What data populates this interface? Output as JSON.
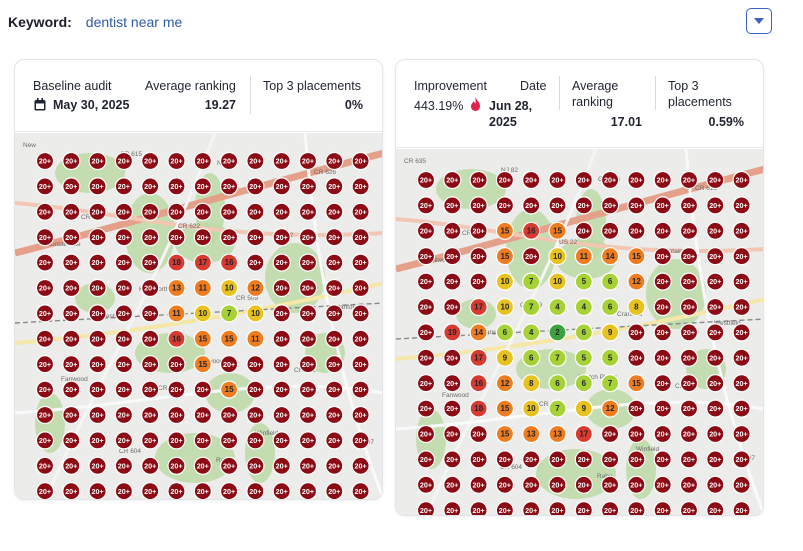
{
  "keyword": {
    "label": "Keyword:",
    "value": "dentist near me"
  },
  "dropdown": {
    "icon": "chevron-down-icon",
    "color": "#3a63c2"
  },
  "baseline": {
    "title": "Baseline audit",
    "date": "May 30, 2025",
    "date_icon": "calendar-icon",
    "avg_label": "Average ranking",
    "avg_value": "19.27",
    "top3_label": "Top 3 placements",
    "top3_value": "0%",
    "grid": [
      [
        "20+",
        "20+",
        "20+",
        "20+",
        "20+",
        "20+",
        "20+",
        "20+",
        "20+",
        "20+",
        "20+",
        "20+",
        "20+"
      ],
      [
        "20+",
        "20+",
        "20+",
        "20+",
        "20+",
        "20+",
        "20+",
        "20+",
        "20+",
        "20+",
        "20+",
        "20+",
        "20+"
      ],
      [
        "20+",
        "20+",
        "20+",
        "20+",
        "20+",
        "20+",
        "20+",
        "20+",
        "20+",
        "20+",
        "20+",
        "20+",
        "20+"
      ],
      [
        "20+",
        "20+",
        "20+",
        "20+",
        "20+",
        "20+",
        "20+",
        "20+",
        "20+",
        "20+",
        "20+",
        "20+",
        "20+"
      ],
      [
        "20+",
        "20+",
        "20+",
        "20+",
        "20+",
        "18",
        "17",
        "16",
        "20+",
        "20+",
        "20+",
        "20+",
        "20+"
      ],
      [
        "20+",
        "20+",
        "20+",
        "20+",
        "20+",
        "13",
        "11",
        "10",
        "12",
        "20+",
        "20+",
        "20+",
        "20+"
      ],
      [
        "20+",
        "20+",
        "20+",
        "20+",
        "20+",
        "11",
        "10",
        "7",
        "10",
        "20+",
        "20+",
        "20+",
        "20+"
      ],
      [
        "20+",
        "20+",
        "20+",
        "20+",
        "20+",
        "16",
        "15",
        "15",
        "11",
        "20+",
        "20+",
        "20+",
        "20+"
      ],
      [
        "20+",
        "20+",
        "20+",
        "20+",
        "20+",
        "20+",
        "15",
        "20+",
        "20+",
        "20+",
        "20+",
        "20+",
        "20+"
      ],
      [
        "20+",
        "20+",
        "20+",
        "20+",
        "20+",
        "20+",
        "20+",
        "15",
        "20+",
        "20+",
        "20+",
        "20+",
        "20+"
      ],
      [
        "20+",
        "20+",
        "20+",
        "20+",
        "20+",
        "20+",
        "20+",
        "20+",
        "20+",
        "20+",
        "20+",
        "20+",
        "20+"
      ],
      [
        "20+",
        "20+",
        "20+",
        "20+",
        "20+",
        "20+",
        "20+",
        "20+",
        "20+",
        "20+",
        "20+",
        "20+",
        "20+"
      ],
      [
        "20+",
        "20+",
        "20+",
        "20+",
        "20+",
        "20+",
        "20+",
        "20+",
        "20+",
        "20+",
        "20+",
        "20+",
        "20+"
      ],
      [
        "20+",
        "20+",
        "20+",
        "20+",
        "20+",
        "20+",
        "20+",
        "20+",
        "20+",
        "20+",
        "20+",
        "20+",
        "20+"
      ]
    ]
  },
  "current": {
    "improvement_label": "Improvement",
    "improvement_value": "443.19%",
    "improvement_icon": "flame-icon",
    "date_label": "Date",
    "date_value_line1": "Jun 28,",
    "date_value_line2": "2025",
    "avg_label_line1": "Average",
    "avg_label_line2": "ranking",
    "avg_value": "17.01",
    "top3_label_line1": "Top 3",
    "top3_label_line2": "placements",
    "top3_value": "0.59%",
    "grid": [
      [
        "20+",
        "20+",
        "20+",
        "20+",
        "20+",
        "20+",
        "20+",
        "20+",
        "20+",
        "20+",
        "20+",
        "20+",
        "20+"
      ],
      [
        "20+",
        "20+",
        "20+",
        "20+",
        "20+",
        "20+",
        "20+",
        "20+",
        "20+",
        "20+",
        "20+",
        "20+",
        "20+"
      ],
      [
        "20+",
        "20+",
        "20+",
        "15",
        "16",
        "15",
        "20+",
        "20+",
        "20+",
        "20+",
        "20+",
        "20+",
        "20+"
      ],
      [
        "20+",
        "20+",
        "20+",
        "15",
        "20+",
        "10",
        "11",
        "14",
        "15",
        "20+",
        "20+",
        "20+",
        "20+"
      ],
      [
        "20+",
        "20+",
        "20+",
        "10",
        "7",
        "10",
        "5",
        "6",
        "12",
        "20+",
        "20+",
        "20+",
        "20+"
      ],
      [
        "20+",
        "20+",
        "17",
        "10",
        "7",
        "4",
        "4",
        "6",
        "8",
        "20+",
        "20+",
        "20+",
        "20+"
      ],
      [
        "20+",
        "19",
        "14",
        "6",
        "4",
        "2",
        "6",
        "9",
        "20+",
        "20+",
        "20+",
        "20+",
        "20+"
      ],
      [
        "20+",
        "20+",
        "17",
        "9",
        "6",
        "7",
        "5",
        "5",
        "20+",
        "20+",
        "20+",
        "20+",
        "20+"
      ],
      [
        "20+",
        "20+",
        "16",
        "12",
        "8",
        "6",
        "6",
        "7",
        "15",
        "20+",
        "20+",
        "20+",
        "20+"
      ],
      [
        "20+",
        "20+",
        "18",
        "15",
        "10",
        "7",
        "9",
        "12",
        "20+",
        "20+",
        "20+",
        "20+",
        "20+"
      ],
      [
        "20+",
        "20+",
        "20+",
        "15",
        "13",
        "13",
        "17",
        "20+",
        "20+",
        "20+",
        "20+",
        "20+",
        "20+"
      ],
      [
        "20+",
        "20+",
        "20+",
        "20+",
        "20+",
        "20+",
        "20+",
        "20+",
        "20+",
        "20+",
        "20+",
        "20+",
        "20+"
      ],
      [
        "20+",
        "20+",
        "20+",
        "20+",
        "20+",
        "20+",
        "20+",
        "20+",
        "20+",
        "20+",
        "20+",
        "20+",
        "20+"
      ],
      [
        "20+",
        "20+",
        "20+",
        "20+",
        "20+",
        "20+",
        "20+",
        "20+",
        "20+",
        "20+",
        "20+",
        "20+",
        "20+"
      ]
    ]
  },
  "map_labels": {
    "card1": [
      "New",
      "CR 615",
      "NJ 82",
      "CR 626",
      "CR 645",
      "CR 622",
      "US 22",
      "Mountainside",
      "Kenilworth",
      "CR 509",
      "Cranford",
      "Westfield",
      "Garwood",
      "CR 611",
      "Fanwood",
      "CR 655",
      "Winfield",
      "CR 607",
      "CR 604",
      "Rahv"
    ],
    "card2": [
      "CR 635",
      "NJ 82",
      "CR 626",
      "CR 615",
      "CR 645",
      "US 22",
      "Mountainside",
      "Kenilworth",
      "CR 509",
      "Cranford",
      "Westfield",
      "Garwood",
      "Scotch Plains",
      "CR 611",
      "Fanwood",
      "CR 655",
      "Winfield",
      "CR 607",
      "CR 604",
      "Rahv"
    ]
  },
  "colors": {
    "rank_out": "#8b0a14",
    "rank_red": "#d93a2f",
    "rank_orange": "#ef7d1f",
    "rank_yellow": "#e8c21f",
    "rank_lime": "#a7d235",
    "rank_green": "#3ca33c"
  }
}
